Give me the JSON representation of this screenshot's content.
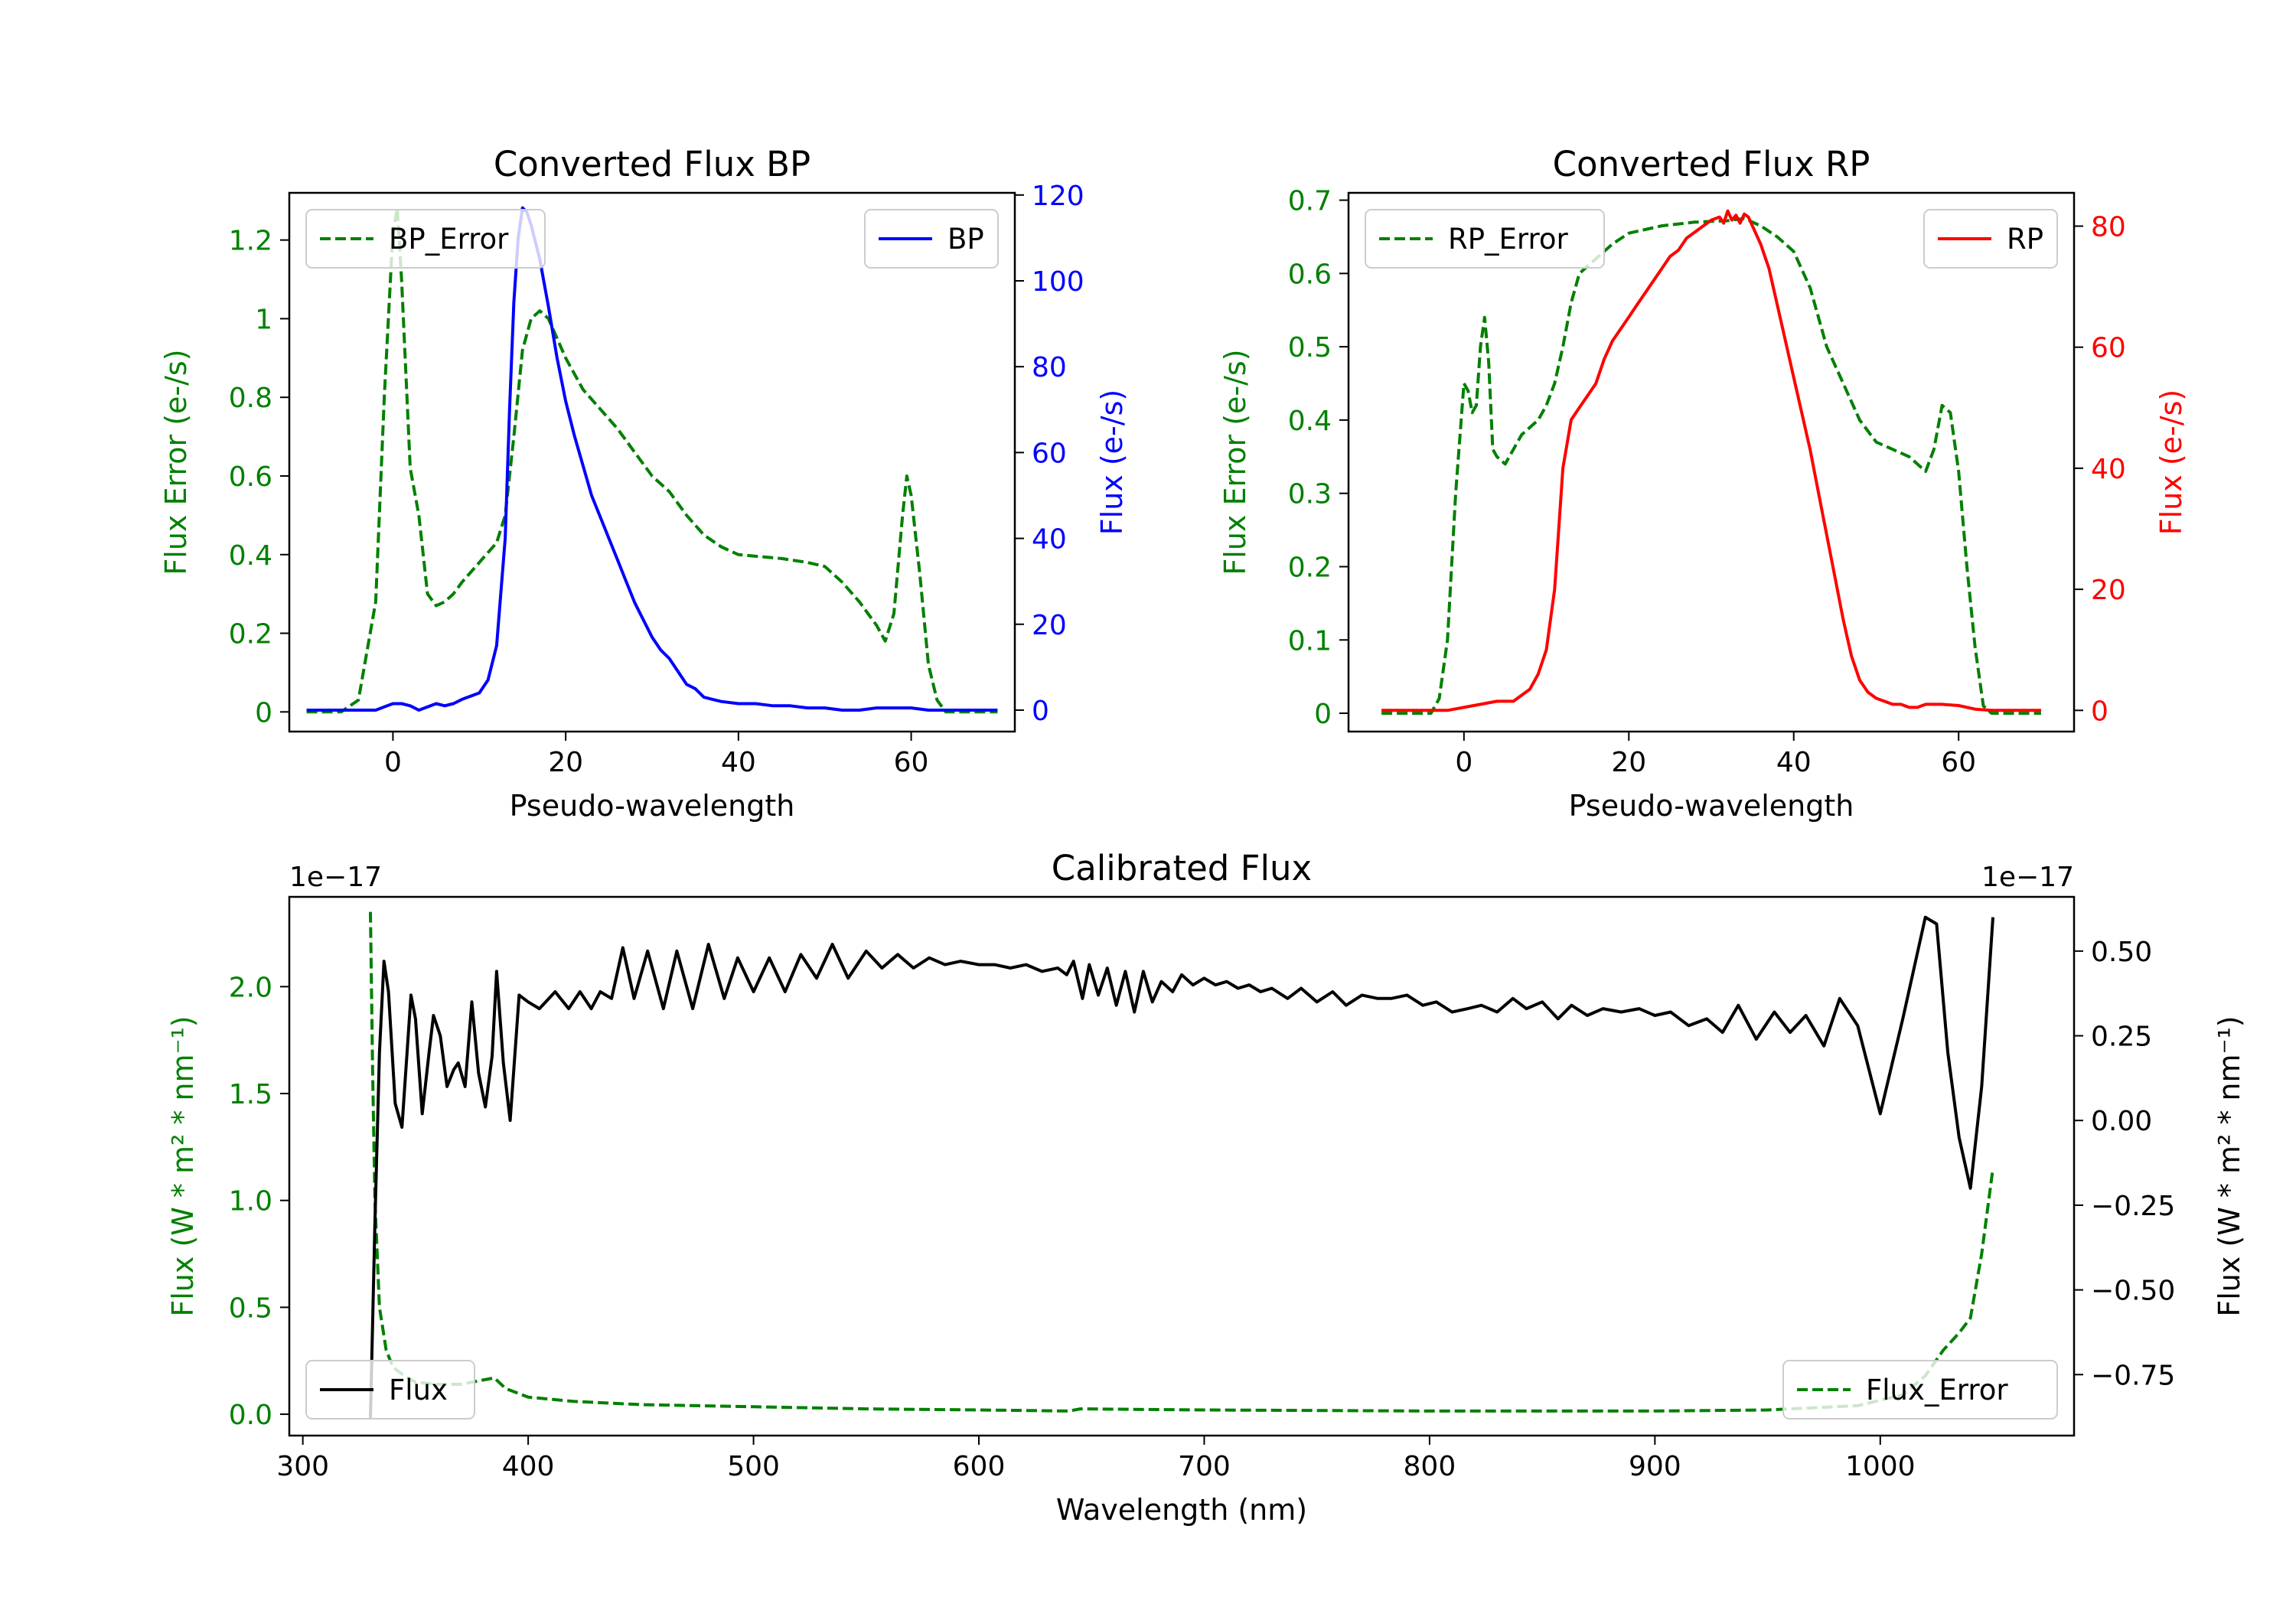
{
  "chart_data": [
    {
      "type": "line",
      "title": "Converted Flux BP",
      "xlabel": "Pseudo-wavelength",
      "ylabel_left": "Flux Error (e-/s)",
      "ylabel_right": "Flux (e-/s)",
      "xlim": [
        -12,
        72
      ],
      "ylim_left": [
        -0.05,
        1.32
      ],
      "ylim_right": [
        -5.0,
        120.5
      ],
      "xticks": [
        0,
        20,
        40,
        60
      ],
      "yticks_left": [
        0.0,
        0.2,
        0.4,
        0.6,
        0.8,
        1.0,
        1.2
      ],
      "yticks_right": [
        0,
        20,
        40,
        60,
        80,
        100,
        120
      ],
      "colors": {
        "left": "#008000",
        "right": "#0000ff"
      },
      "series": [
        {
          "name": "BP_Error",
          "axis": "left",
          "style": "dashed",
          "color": "#008000",
          "x": [
            -10,
            -6,
            -4,
            -2,
            -1,
            0,
            0.5,
            1,
            2,
            3,
            4,
            5,
            6,
            7,
            8,
            10,
            12,
            13,
            14,
            15,
            16,
            17,
            18,
            20,
            22,
            24,
            26,
            28,
            30,
            32,
            34,
            36,
            38,
            40,
            45,
            48,
            50,
            52,
            54,
            56,
            57,
            58,
            59,
            59.5,
            60,
            61,
            62,
            63,
            64,
            66,
            70
          ],
          "values": [
            0.0,
            0.0,
            0.03,
            0.28,
            0.8,
            1.22,
            1.28,
            1.1,
            0.62,
            0.5,
            0.3,
            0.27,
            0.28,
            0.3,
            0.33,
            0.38,
            0.43,
            0.5,
            0.7,
            0.92,
            1.0,
            1.02,
            1.0,
            0.9,
            0.82,
            0.77,
            0.72,
            0.66,
            0.6,
            0.56,
            0.5,
            0.45,
            0.42,
            0.4,
            0.39,
            0.38,
            0.37,
            0.33,
            0.28,
            0.22,
            0.18,
            0.25,
            0.5,
            0.6,
            0.55,
            0.35,
            0.12,
            0.03,
            0.0,
            0.0,
            0.0
          ]
        },
        {
          "name": "BP",
          "axis": "right",
          "style": "solid",
          "color": "#0000ff",
          "x": [
            -10,
            -2,
            0,
            1,
            2,
            3,
            5,
            6,
            7,
            8,
            10,
            11,
            12,
            13,
            13.5,
            14,
            14.5,
            15,
            15.5,
            16,
            17,
            18,
            19,
            20,
            21,
            22,
            23,
            24,
            25,
            26,
            27,
            28,
            29,
            30,
            31,
            32,
            33,
            34,
            35,
            36,
            37,
            38,
            40,
            42,
            44,
            46,
            48,
            50,
            52,
            54,
            56,
            58,
            60,
            62,
            64,
            66,
            70
          ],
          "values": [
            0,
            0,
            1.5,
            1.5,
            1,
            0,
            1.5,
            1,
            1.5,
            2.5,
            4,
            7,
            15,
            40,
            70,
            95,
            110,
            117,
            116,
            113,
            105,
            94,
            82,
            72,
            64,
            57,
            50,
            45,
            40,
            35,
            30,
            25,
            21,
            17,
            14,
            12,
            9,
            6,
            5,
            3,
            2.5,
            2,
            1.5,
            1.5,
            1,
            1,
            0.5,
            0.5,
            0,
            0,
            0.5,
            0.5,
            0.5,
            0,
            0,
            0,
            0
          ]
        }
      ],
      "legend": [
        {
          "label": "BP_Error",
          "position": "upper-left"
        },
        {
          "label": "BP",
          "position": "upper-right"
        }
      ]
    },
    {
      "type": "line",
      "title": "Converted Flux RP",
      "xlabel": "Pseudo-wavelength",
      "ylabel_left": "Flux Error (e-/s)",
      "ylabel_right": "Flux (e-/s)",
      "xlim": [
        -14,
        74
      ],
      "ylim_left": [
        -0.025,
        0.71
      ],
      "ylim_right": [
        -3.5,
        85.5
      ],
      "xticks": [
        0,
        20,
        40,
        60
      ],
      "yticks_left": [
        0.0,
        0.1,
        0.2,
        0.3,
        0.4,
        0.5,
        0.6,
        0.7
      ],
      "yticks_right": [
        0,
        20,
        40,
        60,
        80
      ],
      "colors": {
        "left": "#008000",
        "right": "#ff0000"
      },
      "series": [
        {
          "name": "RP_Error",
          "axis": "left",
          "style": "dashed",
          "color": "#008000",
          "x": [
            -10,
            -4,
            -3,
            -2,
            -1,
            0,
            0.5,
            1,
            1.5,
            2,
            2.5,
            3,
            3.5,
            4,
            5,
            6,
            7,
            8,
            9,
            10,
            11,
            12,
            13,
            14,
            16,
            18,
            20,
            24,
            28,
            32,
            34,
            36,
            38,
            40,
            42,
            44,
            46,
            48,
            50,
            52,
            54,
            55,
            56,
            57,
            58,
            59,
            60,
            61,
            62,
            63,
            64,
            65,
            70
          ],
          "values": [
            0.0,
            0.0,
            0.02,
            0.1,
            0.3,
            0.45,
            0.44,
            0.41,
            0.42,
            0.5,
            0.54,
            0.48,
            0.36,
            0.35,
            0.34,
            0.36,
            0.38,
            0.39,
            0.4,
            0.42,
            0.45,
            0.5,
            0.56,
            0.6,
            0.62,
            0.64,
            0.655,
            0.665,
            0.67,
            0.672,
            0.675,
            0.665,
            0.65,
            0.63,
            0.58,
            0.5,
            0.45,
            0.4,
            0.37,
            0.36,
            0.35,
            0.34,
            0.33,
            0.36,
            0.42,
            0.41,
            0.33,
            0.2,
            0.09,
            0.01,
            0.0,
            0.0,
            0.0
          ]
        },
        {
          "name": "RP",
          "axis": "right",
          "style": "solid",
          "color": "#ff0000",
          "x": [
            -10,
            -2,
            0,
            2,
            4,
            6,
            7,
            8,
            9,
            10,
            10.5,
            11,
            11.5,
            12,
            13,
            14,
            15,
            16,
            17,
            18,
            19,
            20,
            21,
            22,
            23,
            24,
            25,
            26,
            27,
            28,
            29,
            30,
            31,
            31.5,
            32,
            32.5,
            33,
            33.5,
            34,
            34.5,
            35,
            36,
            37,
            38,
            39,
            40,
            41,
            42,
            43,
            44,
            45,
            46,
            47,
            48,
            49,
            50,
            51,
            52,
            53,
            54,
            55,
            56,
            58,
            60,
            62,
            64,
            66,
            70
          ],
          "values": [
            0,
            0,
            0.5,
            1,
            1.5,
            1.5,
            2.5,
            3.5,
            6,
            10,
            15,
            20,
            30,
            40,
            48,
            50,
            52,
            54,
            58,
            61,
            63,
            65,
            67,
            69,
            71,
            73,
            75,
            76,
            78,
            79,
            80,
            81,
            81.5,
            80.5,
            82.5,
            81,
            81.8,
            80.5,
            82,
            81.5,
            80,
            77,
            73,
            67,
            61,
            55,
            49,
            43,
            36,
            29,
            22,
            15,
            9,
            5,
            3,
            2,
            1.5,
            1,
            1,
            0.5,
            0.5,
            1,
            1,
            0.8,
            0.2,
            0,
            0,
            0
          ]
        }
      ],
      "legend": [
        {
          "label": "RP_Error",
          "position": "upper-left"
        },
        {
          "label": "RP",
          "position": "upper-right"
        }
      ]
    },
    {
      "type": "line",
      "title": "Calibrated Flux",
      "xlabel": "Wavelength (nm)",
      "ylabel_left": "Flux (W * m² * nm⁻¹)",
      "ylabel_right": "Flux (W * m² * nm⁻¹)",
      "offset_left": "1e−17",
      "offset_right": "1e−17",
      "xlim": [
        294,
        1086
      ],
      "ylim_left": [
        -0.1,
        2.42
      ],
      "ylim_right": [
        -0.93,
        0.66
      ],
      "xticks": [
        300,
        400,
        500,
        600,
        700,
        800,
        900,
        1000
      ],
      "yticks_left": [
        0.0,
        0.5,
        1.0,
        1.5,
        2.0
      ],
      "ytick_labels_left": [
        "0.0",
        "0.5",
        "1.0",
        "1.5",
        "2.0"
      ],
      "yticks_right": [
        -0.75,
        -0.5,
        -0.25,
        0.0,
        0.25,
        0.5
      ],
      "ytick_labels_right": [
        "−0.75",
        "−0.50",
        "−0.25",
        "0.00",
        "0.25",
        "0.50"
      ],
      "colors": {
        "left": "#008000",
        "right": "#000000"
      },
      "series": [
        {
          "name": "Flux_Error",
          "axis": "left",
          "style": "dashed",
          "color": "#008000",
          "x": [
            330,
            331,
            332,
            334,
            337,
            340,
            345,
            350,
            360,
            370,
            380,
            385,
            390,
            400,
            420,
            450,
            500,
            550,
            600,
            640,
            645,
            700,
            800,
            900,
            950,
            990,
            1010,
            1020,
            1028,
            1035,
            1040,
            1045,
            1050
          ],
          "values": [
            2.35,
            1.6,
            1.0,
            0.5,
            0.3,
            0.22,
            0.18,
            0.15,
            0.14,
            0.14,
            0.16,
            0.17,
            0.12,
            0.08,
            0.06,
            0.045,
            0.035,
            0.025,
            0.02,
            0.015,
            0.025,
            0.02,
            0.015,
            0.015,
            0.02,
            0.04,
            0.09,
            0.18,
            0.3,
            0.38,
            0.45,
            0.75,
            1.15
          ]
        },
        {
          "name": "Flux",
          "axis": "right",
          "style": "solid",
          "color": "#000000",
          "x": [
            330,
            332,
            334,
            336,
            338,
            341,
            344,
            348,
            350,
            353,
            356,
            358,
            361,
            364,
            367,
            369,
            372,
            375,
            378,
            381,
            384,
            386,
            389,
            392,
            396,
            400,
            405,
            412,
            418,
            423,
            428,
            432,
            437,
            442,
            447,
            453,
            460,
            466,
            473,
            480,
            487,
            493,
            500,
            507,
            514,
            521,
            528,
            535,
            542,
            550,
            557,
            564,
            571,
            578,
            585,
            592,
            600,
            607,
            614,
            621,
            628,
            635,
            639,
            642,
            646,
            649,
            653,
            657,
            661,
            665,
            669,
            673,
            677,
            681,
            686,
            690,
            695,
            700,
            705,
            710,
            715,
            720,
            725,
            730,
            737,
            743,
            750,
            757,
            763,
            770,
            777,
            783,
            790,
            797,
            803,
            810,
            817,
            823,
            830,
            837,
            843,
            850,
            857,
            863,
            870,
            877,
            885,
            893,
            900,
            907,
            915,
            923,
            930,
            937,
            945,
            953,
            960,
            967,
            975,
            982,
            990,
            1000,
            1010,
            1020,
            1025,
            1030,
            1035,
            1040,
            1045,
            1050
          ],
          "values": [
            -0.88,
            -0.3,
            0.2,
            0.47,
            0.38,
            0.05,
            -0.02,
            0.37,
            0.3,
            0.02,
            0.2,
            0.31,
            0.25,
            0.1,
            0.15,
            0.17,
            0.1,
            0.35,
            0.14,
            0.04,
            0.19,
            0.44,
            0.17,
            0.0,
            0.37,
            0.35,
            0.33,
            0.38,
            0.33,
            0.38,
            0.33,
            0.38,
            0.36,
            0.51,
            0.36,
            0.5,
            0.33,
            0.5,
            0.33,
            0.52,
            0.36,
            0.48,
            0.38,
            0.48,
            0.38,
            0.49,
            0.42,
            0.52,
            0.42,
            0.5,
            0.45,
            0.49,
            0.45,
            0.48,
            0.46,
            0.47,
            0.46,
            0.46,
            0.45,
            0.46,
            0.44,
            0.45,
            0.43,
            0.47,
            0.36,
            0.46,
            0.37,
            0.45,
            0.34,
            0.44,
            0.32,
            0.44,
            0.35,
            0.41,
            0.38,
            0.43,
            0.4,
            0.42,
            0.4,
            0.41,
            0.39,
            0.4,
            0.38,
            0.39,
            0.36,
            0.39,
            0.35,
            0.38,
            0.34,
            0.37,
            0.36,
            0.36,
            0.37,
            0.34,
            0.35,
            0.32,
            0.33,
            0.34,
            0.32,
            0.36,
            0.33,
            0.35,
            0.3,
            0.34,
            0.31,
            0.33,
            0.32,
            0.33,
            0.31,
            0.32,
            0.28,
            0.3,
            0.26,
            0.34,
            0.24,
            0.32,
            0.26,
            0.31,
            0.22,
            0.36,
            0.28,
            0.02,
            0.3,
            0.6,
            0.58,
            0.2,
            -0.05,
            -0.2,
            0.1,
            0.6
          ]
        }
      ],
      "legend": [
        {
          "label": "Flux",
          "position": "lower-left"
        },
        {
          "label": "Flux_Error",
          "position": "lower-right"
        }
      ]
    }
  ]
}
